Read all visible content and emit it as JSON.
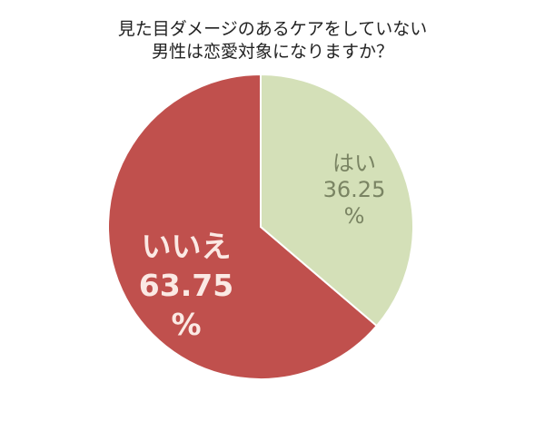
{
  "title": {
    "line1": "見た目ダメージのあるケアをしていない",
    "line2": "男性は恋愛対象になりますか？"
  },
  "colors": {
    "yes": "#d4e0b8",
    "no": "#c0504d",
    "yes_text": "#7a8463",
    "no_text": "#fbe9e4",
    "separator": "#ffffff"
  },
  "slices": {
    "yes": {
      "name": "はい",
      "value": "36.25",
      "unit": "%"
    },
    "no": {
      "name": "いいえ",
      "value": "63.75",
      "unit": "%"
    }
  },
  "chart_data": {
    "type": "pie",
    "title": "見た目ダメージのあるケアをしていない男性は恋愛対象になりますか？",
    "categories": [
      "はい",
      "いいえ"
    ],
    "values": [
      36.25,
      63.75
    ],
    "unit": "%",
    "start_angle": "12 o'clock, clockwise",
    "legend": "none (inline labels)"
  }
}
